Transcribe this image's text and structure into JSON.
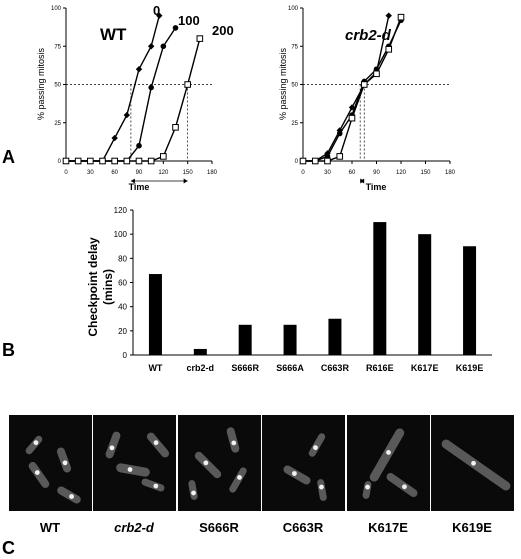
{
  "panel_letters": {
    "a": "A",
    "b": "B",
    "c": "C"
  },
  "chart_data": [
    {
      "type": "line",
      "panel": "A-left",
      "title": "WT",
      "xlabel": "Time",
      "ylabel": "% passing mitosis",
      "xlim": [
        0,
        180
      ],
      "ylim": [
        0,
        100
      ],
      "xticks": [
        0,
        30,
        60,
        90,
        120,
        150,
        180
      ],
      "yticks": [
        0,
        25,
        50,
        75,
        100
      ],
      "series": [
        {
          "name": "0",
          "marker": "diamond",
          "x": [
            0,
            15,
            30,
            45,
            60,
            75,
            90,
            105,
            115
          ],
          "y": [
            0,
            0,
            0,
            0,
            15,
            30,
            60,
            75,
            95
          ]
        },
        {
          "name": "100",
          "marker": "circle",
          "x": [
            0,
            15,
            30,
            45,
            60,
            75,
            90,
            105,
            120,
            135
          ],
          "y": [
            0,
            0,
            0,
            0,
            0,
            0,
            10,
            48,
            75,
            87
          ]
        },
        {
          "name": "200",
          "marker": "square",
          "x": [
            0,
            15,
            30,
            45,
            60,
            75,
            90,
            105,
            120,
            135,
            150,
            165
          ],
          "y": [
            0,
            0,
            0,
            0,
            0,
            0,
            0,
            0,
            3,
            22,
            50,
            80
          ]
        }
      ],
      "reference_y": 50,
      "reference_x": [
        80,
        150
      ]
    },
    {
      "type": "line",
      "panel": "A-right",
      "title": "crb2-d",
      "xlabel": "Time",
      "ylabel": "% passing mitosis",
      "xlim": [
        0,
        180
      ],
      "ylim": [
        0,
        100
      ],
      "xticks": [
        0,
        30,
        60,
        90,
        120,
        150,
        180
      ],
      "yticks": [
        0,
        25,
        50,
        75,
        100
      ],
      "series": [
        {
          "name": "0",
          "marker": "diamond",
          "x": [
            0,
            15,
            30,
            45,
            60,
            75,
            90,
            105
          ],
          "y": [
            0,
            0,
            5,
            20,
            35,
            50,
            58,
            95
          ]
        },
        {
          "name": "100",
          "marker": "circle",
          "x": [
            0,
            15,
            30,
            45,
            60,
            75,
            90,
            105,
            120
          ],
          "y": [
            0,
            0,
            3,
            18,
            30,
            52,
            60,
            75,
            92
          ]
        },
        {
          "name": "200",
          "marker": "square",
          "x": [
            0,
            15,
            30,
            45,
            60,
            75,
            90,
            105,
            120
          ],
          "y": [
            0,
            0,
            0,
            3,
            28,
            50,
            57,
            73,
            94
          ]
        }
      ],
      "reference_y": 50,
      "reference_x": [
        70,
        75
      ]
    },
    {
      "type": "bar",
      "panel": "B",
      "ylabel": "Checkpoint delay (mins)",
      "ylim": [
        0,
        120
      ],
      "yticks": [
        0,
        20,
        40,
        60,
        80,
        100,
        120
      ],
      "categories": [
        "WT",
        "crb2-d",
        "S666R",
        "S666A",
        "C663R",
        "R616E",
        "K617E",
        "K619E"
      ],
      "values": [
        67,
        5,
        25,
        25,
        30,
        110,
        100,
        90
      ]
    }
  ],
  "micrographs": [
    {
      "label": "WT",
      "italic": false
    },
    {
      "label": "crb2-d",
      "italic": true
    },
    {
      "label": "S666R",
      "italic": false
    },
    {
      "label": "C663R",
      "italic": false
    },
    {
      "label": "K617E",
      "italic": false
    },
    {
      "label": "K619E",
      "italic": false
    }
  ]
}
